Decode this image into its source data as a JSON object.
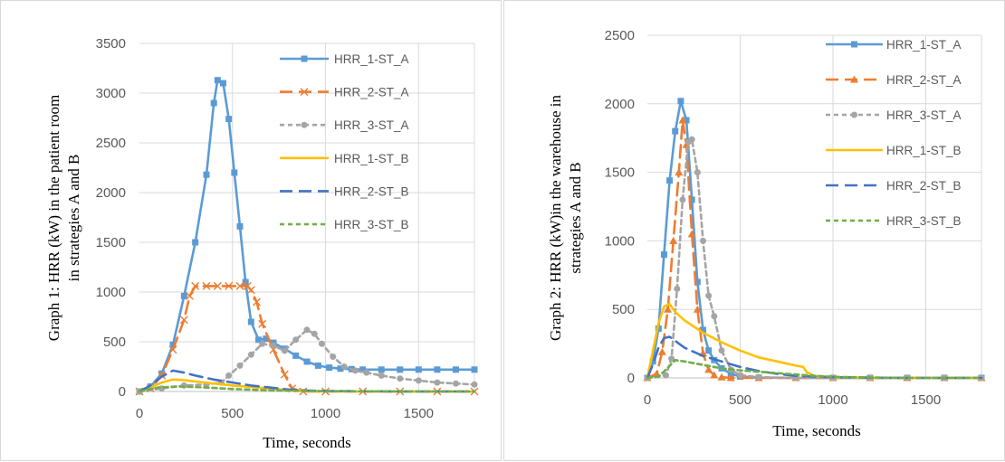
{
  "chart_data": [
    {
      "type": "line",
      "ylabel": "Graph 1: HRR (kW) in the patient room in strategies A and B",
      "ylabel_lines": [
        "Graph 1: HRR (kW) in the patient room",
        "in strategies A and B"
      ],
      "xlabel": "Time, seconds",
      "xlim": [
        0,
        1800
      ],
      "ylim": [
        0,
        3500
      ],
      "xticks": [
        0,
        500,
        1000,
        1500
      ],
      "yticks": [
        0,
        500,
        1000,
        1500,
        2000,
        2500,
        3000,
        3500
      ],
      "grid": "vertical",
      "legend": "right",
      "series": [
        {
          "name": "HRR_1-ST_A",
          "color": "#5b9bd5",
          "dash": "solid",
          "marker": "square",
          "x": [
            0,
            60,
            120,
            180,
            240,
            300,
            360,
            400,
            420,
            450,
            480,
            510,
            540,
            570,
            600,
            640,
            680,
            720,
            780,
            840,
            900,
            960,
            1020,
            1080,
            1140,
            1200,
            1300,
            1400,
            1500,
            1600,
            1700,
            1800
          ],
          "y": [
            0,
            50,
            180,
            470,
            960,
            1500,
            2180,
            2900,
            3130,
            3100,
            2740,
            2200,
            1660,
            1100,
            700,
            520,
            530,
            490,
            430,
            360,
            300,
            260,
            240,
            230,
            225,
            220,
            220,
            220,
            220,
            220,
            220,
            220
          ]
        },
        {
          "name": "HRR_2-ST_A",
          "color": "#ed7d31",
          "dash": "long-dash",
          "marker": "x",
          "x": [
            0,
            60,
            120,
            180,
            240,
            270,
            300,
            360,
            420,
            480,
            540,
            580,
            600,
            630,
            660,
            720,
            780,
            820,
            880,
            1000,
            1200,
            1400,
            1600,
            1800
          ],
          "y": [
            0,
            30,
            160,
            420,
            720,
            960,
            1060,
            1060,
            1060,
            1060,
            1060,
            1060,
            1020,
            900,
            680,
            420,
            170,
            30,
            0,
            0,
            0,
            0,
            0,
            0
          ]
        },
        {
          "name": "HRR_3-ST_A",
          "color": "#a5a5a5",
          "dash": "short-dash",
          "marker": "circle",
          "x": [
            0,
            120,
            240,
            360,
            440,
            480,
            540,
            600,
            660,
            720,
            780,
            840,
            900,
            940,
            980,
            1040,
            1100,
            1160,
            1220,
            1300,
            1400,
            1500,
            1600,
            1700,
            1800
          ],
          "y": [
            0,
            30,
            60,
            70,
            90,
            160,
            260,
            370,
            480,
            460,
            410,
            520,
            620,
            580,
            480,
            350,
            250,
            210,
            190,
            160,
            130,
            110,
            90,
            80,
            70
          ]
        },
        {
          "name": "HRR_1-ST_B",
          "color": "#ffc000",
          "dash": "solid",
          "marker": "none",
          "x": [
            0,
            60,
            120,
            180,
            240,
            300,
            400,
            500,
            600,
            700,
            760,
            800,
            860,
            1000,
            1200,
            1400,
            1600,
            1800
          ],
          "y": [
            0,
            40,
            90,
            120,
            115,
            100,
            80,
            60,
            45,
            30,
            20,
            10,
            5,
            2,
            0,
            0,
            0,
            0
          ]
        },
        {
          "name": "HRR_2-ST_B",
          "color": "#4472c4",
          "dash": "long-dash",
          "marker": "none",
          "x": [
            0,
            60,
            120,
            180,
            240,
            300,
            400,
            500,
            600,
            700,
            800,
            900,
            1000,
            1200,
            1400,
            1600,
            1800
          ],
          "y": [
            0,
            60,
            150,
            210,
            190,
            160,
            120,
            90,
            60,
            40,
            20,
            10,
            5,
            2,
            0,
            0,
            0
          ]
        },
        {
          "name": "HRR_3-ST_B",
          "color": "#70ad47",
          "dash": "short-dash",
          "marker": "none",
          "x": [
            0,
            100,
            200,
            300,
            400,
            500,
            600,
            700,
            800,
            900,
            1000,
            1200,
            1400,
            1600,
            1800
          ],
          "y": [
            0,
            40,
            50,
            45,
            35,
            25,
            18,
            12,
            8,
            5,
            3,
            2,
            1,
            0,
            0
          ]
        }
      ]
    },
    {
      "type": "line",
      "ylabel": "Graph 2: HRR (kW)in the warehouse in strategies A and B",
      "ylabel_lines": [
        "Graph 2: HRR (kW)in the warehouse in",
        "strategies A and B"
      ],
      "xlabel": "Time, seconds",
      "xlim": [
        0,
        1800
      ],
      "ylim": [
        0,
        2500
      ],
      "xticks": [
        0,
        500,
        1000,
        1500
      ],
      "yticks": [
        0,
        500,
        1000,
        1500,
        2000,
        2500
      ],
      "grid": "both",
      "legend": "right",
      "series": [
        {
          "name": "HRR_1-ST_A",
          "color": "#5b9bd5",
          "dash": "solid",
          "marker": "square",
          "x": [
            0,
            30,
            60,
            90,
            120,
            150,
            180,
            210,
            240,
            270,
            300,
            330,
            360,
            400,
            450,
            500,
            600,
            800,
            1000,
            1200,
            1400,
            1600,
            1800
          ],
          "y": [
            0,
            120,
            360,
            900,
            1440,
            1800,
            2020,
            1880,
            1300,
            700,
            350,
            200,
            130,
            70,
            30,
            10,
            2,
            0,
            0,
            0,
            0,
            0,
            0
          ]
        },
        {
          "name": "HRR_2-ST_A",
          "color": "#ed7d31",
          "dash": "long-dash",
          "marker": "triangle",
          "x": [
            0,
            50,
            80,
            110,
            140,
            170,
            190,
            210,
            240,
            270,
            300,
            330,
            360,
            400,
            450,
            600,
            800,
            1000,
            1200,
            1400,
            1600,
            1800
          ],
          "y": [
            0,
            30,
            190,
            500,
            1000,
            1500,
            1880,
            1700,
            1050,
            500,
            180,
            60,
            20,
            5,
            0,
            0,
            0,
            0,
            0,
            0,
            0,
            0
          ]
        },
        {
          "name": "HRR_3-ST_A",
          "color": "#a5a5a5",
          "dash": "short-dash",
          "marker": "circle",
          "x": [
            0,
            100,
            130,
            160,
            190,
            220,
            240,
            270,
            300,
            330,
            360,
            400,
            450,
            500,
            600,
            800,
            1000,
            1200,
            1400,
            1600,
            1800
          ],
          "y": [
            0,
            20,
            140,
            650,
            1300,
            1720,
            1740,
            1500,
            1000,
            600,
            450,
            200,
            60,
            20,
            5,
            0,
            0,
            0,
            0,
            0,
            0
          ]
        },
        {
          "name": "HRR_1-ST_B",
          "color": "#ffc000",
          "dash": "solid",
          "marker": "none",
          "x": [
            0,
            30,
            60,
            90,
            120,
            150,
            200,
            300,
            400,
            500,
            600,
            700,
            800,
            840,
            860,
            900,
            1000,
            1200,
            1400,
            1600,
            1800
          ],
          "y": [
            0,
            200,
            400,
            520,
            540,
            480,
            420,
            330,
            260,
            200,
            150,
            120,
            90,
            80,
            40,
            15,
            5,
            2,
            0,
            0,
            0
          ]
        },
        {
          "name": "HRR_2-ST_B",
          "color": "#4472c4",
          "dash": "long-dash",
          "marker": "none",
          "x": [
            0,
            30,
            60,
            90,
            120,
            150,
            200,
            250,
            300,
            400,
            500,
            600,
            700,
            800,
            1000,
            1200,
            1400,
            1600,
            1800
          ],
          "y": [
            0,
            100,
            220,
            290,
            300,
            270,
            220,
            190,
            160,
            120,
            80,
            50,
            30,
            15,
            5,
            2,
            0,
            0,
            0
          ]
        },
        {
          "name": "HRR_3-ST_B",
          "color": "#70ad47",
          "dash": "short-dash",
          "marker": "none",
          "x": [
            0,
            60,
            100,
            150,
            200,
            300,
            400,
            500,
            600,
            700,
            800,
            900,
            1000,
            1200,
            1400,
            1600,
            1800
          ],
          "y": [
            0,
            10,
            60,
            130,
            120,
            95,
            70,
            55,
            45,
            35,
            25,
            15,
            8,
            3,
            0,
            0,
            0
          ]
        }
      ]
    }
  ]
}
